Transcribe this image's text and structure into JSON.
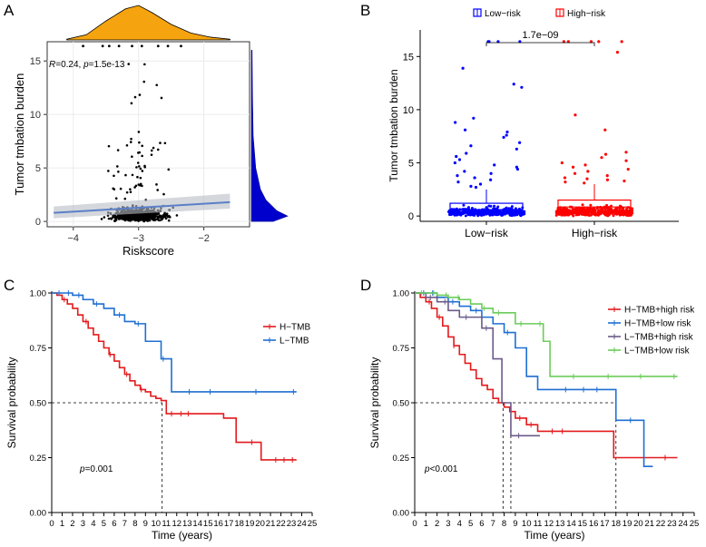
{
  "chart_data": [
    {
      "panel": "A",
      "type": "scatter",
      "xlabel": "Riskscore",
      "ylabel": "Tumor tmbation burden",
      "annotation": "R=0.24, p=1.5e-13",
      "annotation_parts": {
        "r_label": "R",
        "r_value": "=0.24, ",
        "p_label": "p",
        "p_value": "=1.5e-13"
      },
      "xlim": [
        -4.4,
        -1.3
      ],
      "ylim": [
        -0.5,
        16.8
      ],
      "x_ticks": [
        -4,
        -3,
        -2
      ],
      "x_tick_labels": [
        "−4",
        "−3",
        "−2"
      ],
      "y_ticks": [
        0,
        5,
        10,
        15
      ],
      "y_tick_labels": [
        "0",
        "5",
        "10",
        "15"
      ],
      "fit_line": {
        "x": [
          -4.3,
          -1.6
        ],
        "y": [
          0.8,
          1.8
        ],
        "ci_low": [
          0.3,
          1.2
        ],
        "ci_high": [
          1.4,
          2.6
        ]
      },
      "colors": {
        "points": "#000000",
        "fit": "#5b7fc7",
        "ci": "#b8bcc4",
        "top_density": "#f5a30f",
        "right_density": "#0000cc"
      },
      "marginal_x_density": {
        "x": [
          -4.1,
          -3.8,
          -3.5,
          -3.2,
          -3.0,
          -2.8,
          -2.5,
          -2.2,
          -1.9,
          -1.6
        ],
        "y": [
          0.02,
          0.15,
          0.55,
          0.9,
          1.0,
          0.8,
          0.45,
          0.2,
          0.08,
          0.02
        ]
      },
      "marginal_y_density": {
        "y": [
          0,
          0.5,
          1,
          2,
          3,
          5,
          8,
          12,
          16
        ],
        "d": [
          0.6,
          1.0,
          0.7,
          0.4,
          0.25,
          0.12,
          0.05,
          0.03,
          0.02
        ]
      }
    },
    {
      "panel": "B",
      "type": "box_jitter",
      "ylabel": "Tumor tmbation burden",
      "categories": [
        "Low−risk",
        "High−risk"
      ],
      "legend": [
        "Low−risk",
        "High−risk"
      ],
      "colors": {
        "Low−risk": "#0000ff",
        "High−risk": "#ff0000"
      },
      "ylim": [
        -0.5,
        17.5
      ],
      "y_ticks": [
        0,
        5,
        10,
        15
      ],
      "y_tick_labels": [
        "0",
        "5",
        "10",
        "15"
      ],
      "boxes": [
        {
          "name": "Low−risk",
          "q1": 0.35,
          "median": 0.6,
          "q3": 1.2,
          "whisker_low": 0.0,
          "whisker_high": 2.5
        },
        {
          "name": "High−risk",
          "q1": 0.5,
          "median": 0.85,
          "q3": 1.5,
          "whisker_low": 0.0,
          "whisker_high": 3.0
        }
      ],
      "outliers": [
        {
          "name": "Low−risk",
          "values": [
            16.4,
            16.4,
            16.4,
            16.4,
            13.9,
            12.4,
            12.1,
            9.2,
            8.8,
            8.1,
            7.9,
            7.6,
            7.4,
            6.9,
            6.6,
            6.3,
            5.9,
            5.6,
            5.3,
            5.0,
            4.8,
            4.6,
            4.4,
            4.2,
            4.0,
            3.8,
            3.6,
            3.4,
            3.2,
            3.0,
            2.8,
            2.7
          ]
        },
        {
          "name": "High−risk",
          "values": [
            16.4,
            16.4,
            16.4,
            16.4,
            16.4,
            15.4,
            9.5,
            8.1,
            6.0,
            5.8,
            5.5,
            5.2,
            5.0,
            4.8,
            4.6,
            4.4,
            4.2,
            4.0,
            3.8,
            3.6,
            3.5,
            3.4,
            3.3,
            3.2,
            3.1
          ]
        }
      ],
      "comparison": "1.7e−09"
    },
    {
      "panel": "C",
      "type": "line",
      "subtype": "kaplan-meier",
      "xlabel": "Time (years)",
      "ylabel": "Survival probability",
      "xlim": [
        0,
        25
      ],
      "ylim": [
        0,
        1
      ],
      "x_ticks": [
        0,
        1,
        2,
        3,
        4,
        5,
        6,
        7,
        8,
        9,
        10,
        11,
        12,
        13,
        14,
        15,
        16,
        17,
        18,
        19,
        20,
        21,
        22,
        23,
        24,
        25
      ],
      "y_ticks": [
        0,
        0.25,
        0.5,
        0.75,
        1
      ],
      "y_tick_labels": [
        "0.00",
        "0.25",
        "0.50",
        "0.75",
        "1.00"
      ],
      "annotation": "p=0.001",
      "annotation_parts": {
        "p_label": "p",
        "p_value": "=0.001"
      },
      "median_guides": [
        {
          "x": 10.6,
          "y": 0.5
        }
      ],
      "series": [
        {
          "name": "H−TMB",
          "color": "#e31a1c",
          "x": [
            0,
            0.5,
            1,
            1.5,
            2,
            2.5,
            3,
            3.5,
            4,
            4.5,
            5,
            5.5,
            6,
            6.5,
            7,
            7.5,
            8,
            8.5,
            9,
            9.5,
            10,
            10.5,
            11,
            16.5,
            17.7,
            20.1,
            23.5
          ],
          "y": [
            1.0,
            0.99,
            0.97,
            0.95,
            0.93,
            0.9,
            0.87,
            0.84,
            0.81,
            0.78,
            0.75,
            0.72,
            0.69,
            0.66,
            0.63,
            0.6,
            0.58,
            0.56,
            0.55,
            0.53,
            0.52,
            0.51,
            0.45,
            0.43,
            0.32,
            0.24,
            0.24
          ],
          "censored_x": [
            1.2,
            3.3,
            5.6,
            7.2,
            8.6,
            11.5,
            12.4,
            13.1,
            19.2,
            21.5,
            22.3,
            23.1
          ]
        },
        {
          "name": "L−TMB",
          "color": "#1f6fd1",
          "x": [
            0,
            1,
            2,
            3,
            4,
            5,
            6,
            7,
            8,
            9,
            10.5,
            11.5,
            23.5
          ],
          "y": [
            1.0,
            1.0,
            0.99,
            0.97,
            0.95,
            0.93,
            0.9,
            0.87,
            0.86,
            0.78,
            0.7,
            0.55,
            0.55
          ],
          "censored_x": [
            0.7,
            1.6,
            2.6,
            4.3,
            6.5,
            8.3,
            10.7,
            13.2,
            15.2,
            19.6,
            23.2
          ]
        }
      ]
    },
    {
      "panel": "D",
      "type": "line",
      "subtype": "kaplan-meier",
      "xlabel": "Time (years)",
      "ylabel": "Survival probability",
      "xlim": [
        0,
        25
      ],
      "ylim": [
        0,
        1
      ],
      "x_ticks": [
        0,
        1,
        2,
        3,
        4,
        5,
        6,
        7,
        8,
        9,
        10,
        11,
        12,
        13,
        14,
        15,
        16,
        17,
        18,
        19,
        20,
        21,
        22,
        23,
        24,
        25
      ],
      "y_ticks": [
        0,
        0.25,
        0.5,
        0.75,
        1
      ],
      "y_tick_labels": [
        "0.00",
        "0.25",
        "0.50",
        "0.75",
        "1.00"
      ],
      "annotation": "p<0.001",
      "annotation_parts": {
        "p_label": "p",
        "p_value": "<0.001"
      },
      "median_guides": [
        {
          "x": 7.9,
          "y": 0.5
        },
        {
          "x": 8.6,
          "y": 0.5
        },
        {
          "x": 18.0,
          "y": 0.5
        }
      ],
      "series": [
        {
          "name": "H−TMB+high risk",
          "color": "#e31a1c",
          "x": [
            0,
            0.5,
            1,
            1.5,
            2,
            2.5,
            3,
            3.5,
            4,
            4.5,
            5,
            5.5,
            6,
            6.5,
            7,
            7.5,
            8,
            8.5,
            9,
            10,
            11,
            17.8,
            23.5
          ],
          "y": [
            1.0,
            0.98,
            0.96,
            0.93,
            0.89,
            0.85,
            0.8,
            0.76,
            0.72,
            0.68,
            0.65,
            0.61,
            0.58,
            0.56,
            0.52,
            0.5,
            0.48,
            0.46,
            0.43,
            0.4,
            0.37,
            0.25,
            0.25
          ],
          "censored_x": [
            1.3,
            2.2,
            3.5,
            9.4,
            10.4,
            12.3,
            13.2,
            22.4
          ]
        },
        {
          "name": "H−TMB+low risk",
          "color": "#1f6fd1",
          "x": [
            0,
            1,
            2,
            3,
            4,
            5,
            6,
            7,
            8,
            9,
            10,
            11,
            18,
            20.5,
            21.3
          ],
          "y": [
            1.0,
            1.0,
            0.98,
            0.96,
            0.94,
            0.92,
            0.89,
            0.86,
            0.82,
            0.75,
            0.62,
            0.56,
            0.42,
            0.21,
            0.21
          ],
          "censored_x": [
            0.8,
            1.6,
            3.4,
            5.5,
            8.3,
            13.5,
            15.1,
            16.3,
            19.3
          ]
        },
        {
          "name": "L−TMB+high risk",
          "color": "#6b5b8a",
          "x": [
            0,
            1,
            2,
            3,
            4,
            5,
            6,
            7,
            7.8,
            8.6,
            11.2
          ],
          "y": [
            1.0,
            0.98,
            0.96,
            0.92,
            0.89,
            0.89,
            0.84,
            0.7,
            0.5,
            0.35,
            0.35
          ],
          "censored_x": [
            1.4,
            2.7,
            4.6,
            6.4,
            9.3
          ]
        },
        {
          "name": "L−TMB+low risk",
          "color": "#6bcc5a",
          "x": [
            0,
            1,
            2,
            3,
            4,
            5,
            6,
            7,
            8,
            9,
            10,
            11.5,
            12.1,
            23.5
          ],
          "y": [
            1.0,
            1.0,
            0.99,
            0.98,
            0.97,
            0.95,
            0.93,
            0.91,
            0.91,
            0.86,
            0.86,
            0.78,
            0.62,
            0.62
          ],
          "censored_x": [
            0.6,
            1.7,
            2.8,
            3.9,
            6.2,
            7.5,
            9.5,
            11.2,
            14.2,
            17.3,
            20.2,
            23.2
          ]
        }
      ]
    }
  ],
  "panel_labels": {
    "a": "A",
    "b": "B",
    "c": "C",
    "d": "D"
  }
}
